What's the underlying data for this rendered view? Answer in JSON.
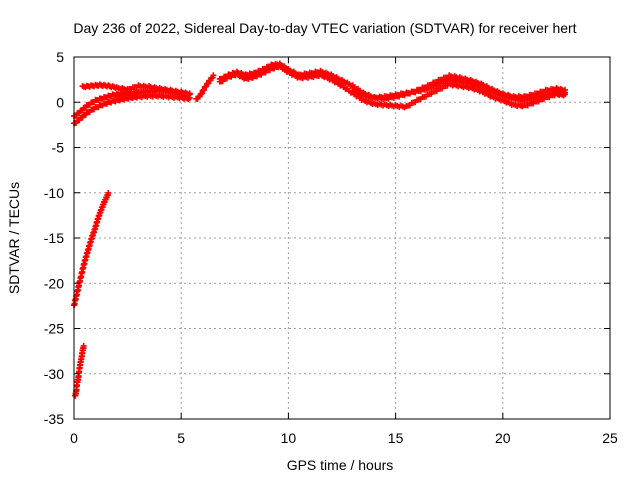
{
  "chart_data": {
    "type": "scatter",
    "title": "Day 236 of 2022, Sidereal Day-to-day VTEC variation (SDTVAR) for receiver hert",
    "xlabel": "GPS time / hours",
    "ylabel": "SDTVAR / TECUs",
    "xlim": [
      0,
      25
    ],
    "ylim": [
      -35,
      5
    ],
    "grid": true,
    "x_ticks": [
      0,
      5,
      10,
      15,
      20,
      25
    ],
    "y_ticks": [
      5,
      0,
      -5,
      -10,
      -15,
      -20,
      -25,
      -30,
      -35
    ],
    "marker": "plus",
    "series": [
      {
        "name": "SDTVAR",
        "color": "#ff0000",
        "segments": [
          {
            "x": [
              0.05,
              0.1,
              0.15,
              0.2,
              0.25,
              0.3,
              0.35,
              0.4,
              0.45
            ],
            "y": [
              -32.5,
              -32.0,
              -31.0,
              -30.5,
              -29.5,
              -28.8,
              -28.2,
              -27.5,
              -27.0
            ]
          },
          {
            "x": [
              0.0,
              0.1,
              0.2,
              0.3,
              0.4,
              0.5,
              0.6,
              0.7,
              0.8,
              0.9,
              1.0,
              1.1,
              1.2,
              1.3,
              1.4,
              1.5,
              1.6
            ],
            "y": [
              -22.5,
              -21.5,
              -20.5,
              -19.5,
              -18.5,
              -17.6,
              -16.8,
              -16.0,
              -15.2,
              -14.5,
              -13.8,
              -13.0,
              -12.3,
              -11.7,
              -11.1,
              -10.6,
              -10.1
            ]
          },
          {
            "x": [
              0.0,
              0.3,
              0.6,
              1.0,
              1.4,
              1.8,
              2.2,
              2.6,
              3.0,
              3.5,
              4.0,
              4.5,
              5.0,
              5.4
            ],
            "y": [
              -2.4,
              -1.8,
              -1.2,
              -0.6,
              -0.2,
              0.1,
              0.3,
              0.5,
              0.6,
              0.7,
              0.7,
              0.6,
              0.5,
              0.4
            ]
          },
          {
            "x": [
              0.0,
              0.3,
              0.6,
              1.0,
              1.4,
              1.8,
              2.2,
              2.6,
              3.0,
              3.5,
              4.0,
              4.5,
              5.0,
              5.4
            ],
            "y": [
              -1.6,
              -1.0,
              -0.4,
              0.2,
              0.5,
              0.8,
              0.9,
              1.0,
              1.1,
              1.2,
              1.3,
              1.2,
              1.0,
              0.8
            ]
          },
          {
            "x": [
              0.4,
              0.8,
              1.2,
              1.6,
              2.0,
              2.5,
              3.0,
              3.5,
              4.0,
              4.5,
              5.0,
              5.4
            ],
            "y": [
              1.7,
              1.8,
              1.9,
              1.8,
              1.6,
              1.4,
              1.8,
              1.7,
              1.5,
              1.3,
              1.1,
              0.9
            ]
          },
          {
            "x": [
              5.7,
              5.9,
              6.1,
              6.3,
              6.5
            ],
            "y": [
              0.3,
              0.8,
              1.6,
              2.3,
              2.9
            ]
          },
          {
            "x": [
              6.8,
              7.2,
              7.6,
              8.0,
              8.4,
              8.8,
              9.2,
              9.6,
              10.0,
              10.5,
              11.0,
              11.5,
              12.0,
              12.5,
              13.0,
              13.5,
              14.0,
              14.5,
              15.0,
              15.5,
              16.0,
              16.5,
              17.0,
              17.5,
              18.0,
              18.5,
              19.0,
              19.5,
              20.0,
              20.5,
              21.0,
              21.5,
              22.0,
              22.5,
              22.9
            ],
            "y": [
              2.5,
              3.0,
              3.3,
              3.0,
              3.2,
              3.6,
              4.1,
              4.2,
              3.6,
              3.0,
              3.2,
              3.4,
              3.0,
              2.4,
              1.8,
              1.0,
              0.5,
              0.6,
              0.8,
              1.0,
              1.2,
              1.5,
              2.0,
              2.5,
              2.3,
              2.1,
              1.7,
              1.2,
              0.8,
              0.4,
              0.2,
              0.5,
              0.8,
              1.2,
              1.0
            ]
          },
          {
            "x": [
              6.8,
              7.2,
              7.6,
              8.0,
              8.4,
              8.8,
              9.2,
              9.6,
              10.0,
              10.5,
              11.0,
              11.5,
              12.0,
              12.5,
              13.0,
              13.5,
              14.0,
              14.5,
              15.0,
              15.5,
              16.0,
              16.5,
              17.0,
              17.5,
              18.0,
              18.5,
              19.0,
              19.5,
              20.0,
              20.5,
              21.0,
              21.5,
              22.0,
              22.5,
              22.9
            ],
            "y": [
              2.2,
              2.8,
              3.1,
              2.6,
              2.8,
              3.2,
              3.7,
              4.0,
              3.3,
              2.7,
              2.8,
              3.0,
              2.5,
              1.8,
              1.0,
              0.2,
              -0.2,
              -0.3,
              -0.4,
              -0.5,
              0.2,
              0.8,
              1.4,
              2.0,
              1.8,
              1.6,
              1.2,
              0.6,
              0.2,
              -0.3,
              -0.4,
              0.0,
              0.5,
              0.9,
              0.8
            ]
          },
          {
            "x": [
              13.0,
              13.5,
              14.0,
              14.5,
              15.0,
              15.5,
              16.0,
              16.5,
              17.0,
              17.5,
              18.0,
              18.5,
              19.0,
              19.5,
              20.0,
              20.5,
              21.0,
              21.5,
              22.0,
              22.5,
              22.9
            ],
            "y": [
              1.5,
              0.8,
              0.5,
              0.4,
              0.6,
              0.9,
              1.3,
              1.8,
              2.4,
              2.9,
              2.7,
              2.4,
              2.0,
              1.4,
              0.9,
              0.6,
              0.6,
              0.9,
              1.3,
              1.5,
              1.3
            ]
          }
        ]
      }
    ]
  }
}
